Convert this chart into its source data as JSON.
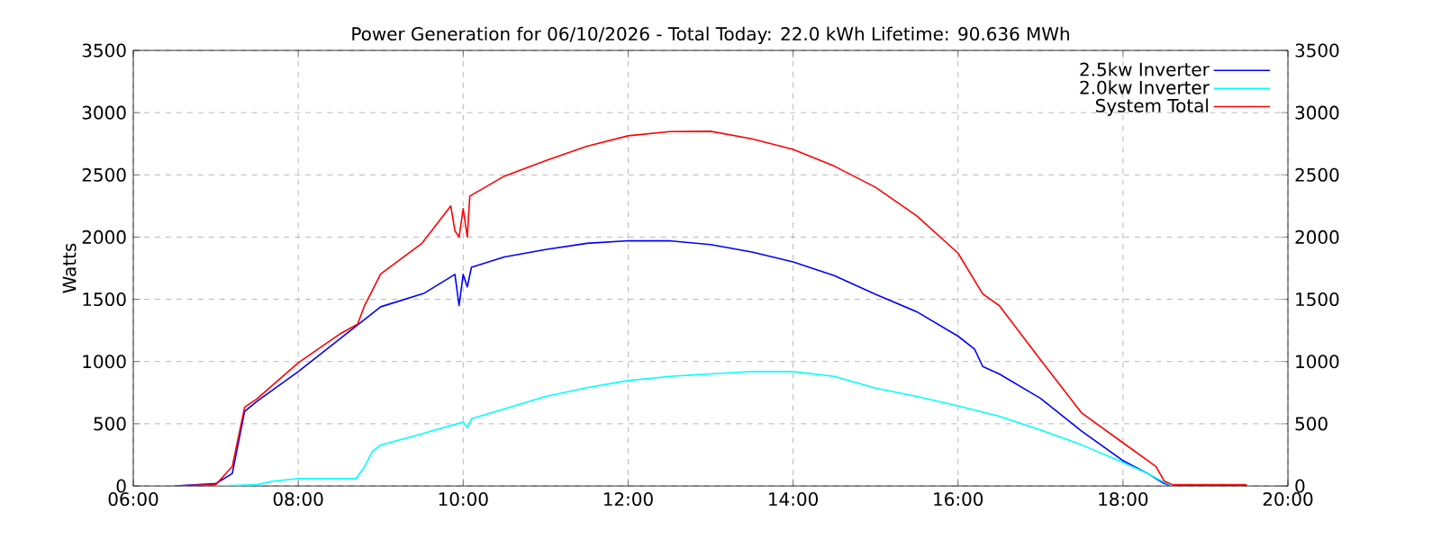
{
  "chart_data": {
    "type": "line",
    "title": "Power Generation for 06/10/2026 - Total Today: 22.0 kWh   Lifetime: 90.636 MWh",
    "ylabel": "Watts",
    "xlim": [
      6,
      20
    ],
    "xticks": [
      {
        "value": 6,
        "label": "06:00"
      },
      {
        "value": 8,
        "label": "08:00"
      },
      {
        "value": 10,
        "label": "10:00"
      },
      {
        "value": 12,
        "label": "12:00"
      },
      {
        "value": 14,
        "label": "14:00"
      },
      {
        "value": 16,
        "label": "16:00"
      },
      {
        "value": 18,
        "label": "18:00"
      },
      {
        "value": 20,
        "label": "20:00"
      }
    ],
    "ylim": [
      0,
      3500
    ],
    "yticks": [
      0,
      500,
      1000,
      1500,
      2000,
      2500,
      3000,
      3500
    ],
    "y2lim": [
      0,
      3500
    ],
    "y2ticks": [
      0,
      500,
      1000,
      1500,
      2000,
      2500,
      3000,
      3500
    ],
    "grid": true,
    "legend": "top right",
    "series": [
      {
        "name": "2.5kw Inverter",
        "color": "#0000ff",
        "x": [
          6.5,
          7.0,
          7.2,
          7.35,
          7.5,
          8.0,
          8.5,
          9.0,
          9.53,
          9.9,
          9.95,
          10.0,
          10.05,
          10.1,
          10.5,
          11.0,
          11.5,
          12.0,
          12.5,
          13.0,
          13.5,
          14.0,
          14.5,
          15.0,
          15.5,
          16.0,
          16.2,
          16.3,
          16.5,
          17.0,
          17.5,
          18.0,
          18.3,
          18.5,
          18.6,
          19.5
        ],
        "values": [
          0,
          20,
          100,
          600,
          680,
          920,
          1180,
          1440,
          1550,
          1700,
          1450,
          1700,
          1600,
          1757,
          1840,
          1900,
          1950,
          1971,
          1970,
          1940,
          1880,
          1800,
          1690,
          1540,
          1400,
          1204,
          1100,
          960,
          900,
          704,
          440,
          204,
          100,
          20,
          0,
          0
        ]
      },
      {
        "name": "2.0kw Inverter",
        "color": "#00ffff",
        "x": [
          7.0,
          7.5,
          7.7,
          8.0,
          8.7,
          8.8,
          8.9,
          9.0,
          9.5,
          10.0,
          10.05,
          10.1,
          10.5,
          11.0,
          11.5,
          12.0,
          12.5,
          13.0,
          13.5,
          14.0,
          14.5,
          15.0,
          15.5,
          16.0,
          16.5,
          17.0,
          17.5,
          18.0,
          18.3,
          18.5,
          18.6
        ],
        "values": [
          0,
          10,
          40,
          60,
          60,
          150,
          280,
          329,
          420,
          514,
          470,
          540,
          620,
          719,
          790,
          847,
          880,
          900,
          920,
          919,
          880,
          786,
          720,
          643,
          560,
          450,
          330,
          190,
          100,
          30,
          0
        ]
      },
      {
        "name": "System Total",
        "color": "#ff0000",
        "x": [
          6.5,
          7.0,
          7.2,
          7.35,
          7.5,
          8.0,
          8.5,
          8.72,
          8.8,
          9.0,
          9.5,
          9.85,
          9.9,
          9.95,
          10.0,
          10.05,
          10.08,
          10.5,
          11.0,
          11.5,
          12.0,
          12.5,
          13.0,
          13.5,
          14.0,
          14.5,
          15.0,
          15.5,
          16.0,
          16.3,
          16.5,
          17.0,
          17.5,
          18.0,
          18.4,
          18.5,
          18.6,
          19.5
        ],
        "values": [
          0,
          10,
          157,
          633,
          700,
          990,
          1220,
          1300,
          1443,
          1704,
          1950,
          2250,
          2050,
          2000,
          2229,
          2000,
          2329,
          2490,
          2614,
          2730,
          2814,
          2847,
          2850,
          2790,
          2704,
          2570,
          2400,
          2170,
          1871,
          1543,
          1450,
          1014,
          586,
          347,
          157,
          40,
          10,
          10
        ]
      }
    ]
  }
}
